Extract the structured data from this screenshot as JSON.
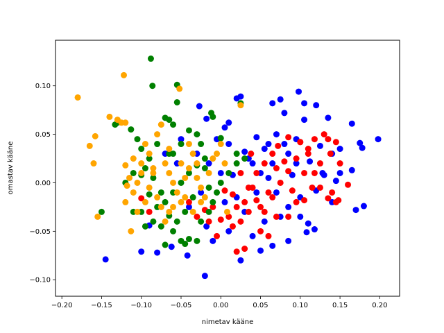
{
  "chart_data": {
    "type": "scatter",
    "xlabel": "nimetav kääne",
    "ylabel": "omastav kääne",
    "xlim": [
      -0.208,
      0.225
    ],
    "ylim": [
      -0.117,
      0.147
    ],
    "xticks": [
      -0.2,
      -0.15,
      -0.1,
      -0.05,
      0.0,
      0.05,
      0.1,
      0.15,
      0.2
    ],
    "xtick_labels": [
      "−0.20",
      "−0.15",
      "−0.10",
      "−0.05",
      "0.00",
      "0.05",
      "0.10",
      "0.15",
      "0.20"
    ],
    "yticks": [
      -0.1,
      -0.05,
      0.0,
      0.05,
      0.1
    ],
    "ytick_labels": [
      "−0.10",
      "−0.05",
      "0.00",
      "0.05",
      "0.10"
    ],
    "grid": false,
    "series": [
      {
        "color": "#0000ff",
        "points": [
          [
            -0.145,
            -0.079
          ],
          [
            -0.1,
            -0.071
          ],
          [
            -0.08,
            -0.072
          ],
          [
            -0.062,
            -0.066
          ],
          [
            -0.02,
            -0.096
          ],
          [
            -0.042,
            -0.075
          ],
          [
            -0.027,
            0.079
          ],
          [
            -0.018,
            0.066
          ],
          [
            0.005,
            0.057
          ],
          [
            0.02,
            0.087
          ],
          [
            0.025,
            0.089
          ],
          [
            0.065,
            0.082
          ],
          [
            0.075,
            0.086
          ],
          [
            0.098,
            0.094
          ],
          [
            0.105,
            0.082
          ],
          [
            0.12,
            0.08
          ],
          [
            0.135,
            0.067
          ],
          [
            0.165,
            0.061
          ],
          [
            0.175,
            0.041
          ],
          [
            0.178,
            0.036
          ],
          [
            0.198,
            0.045
          ],
          [
            0.165,
            0.013
          ],
          [
            0.18,
            -0.024
          ],
          [
            0.17,
            -0.028
          ],
          [
            0.118,
            -0.048
          ],
          [
            0.108,
            -0.051
          ],
          [
            0.085,
            -0.06
          ],
          [
            0.065,
            -0.065
          ],
          [
            0.05,
            -0.07
          ],
          [
            0.025,
            -0.08
          ],
          [
            0.01,
            -0.05
          ],
          [
            -0.01,
            -0.06
          ],
          [
            -0.018,
            -0.045
          ],
          [
            0.04,
            0.02
          ],
          [
            0.055,
            0.035
          ],
          [
            0.07,
            0.05
          ],
          [
            0.085,
            0.03
          ],
          [
            0.095,
            0.02
          ],
          [
            0.105,
            0.065
          ],
          [
            0.08,
            0.072
          ],
          [
            0.06,
            0.04
          ],
          [
            0.045,
            0.047
          ],
          [
            0.03,
            0.032
          ],
          [
            0.015,
            0.008
          ],
          [
            0.005,
            -0.02
          ],
          [
            -0.005,
            0.045
          ],
          [
            0.01,
            0.062
          ],
          [
            0.035,
            0.025
          ],
          [
            0.05,
            0.01
          ],
          [
            0.07,
            -0.01
          ],
          [
            0.085,
            -0.025
          ],
          [
            0.1,
            -0.035
          ],
          [
            0.11,
            -0.042
          ],
          [
            0.125,
            0.038
          ],
          [
            0.14,
            0.03
          ],
          [
            0.13,
            0.008
          ],
          [
            0.12,
            -0.008
          ],
          [
            0.14,
            -0.02
          ],
          [
            0.15,
            0.01
          ],
          [
            0.09,
            0.008
          ],
          [
            0.065,
            0.02
          ],
          [
            0.075,
            -0.035
          ],
          [
            0.055,
            -0.04
          ],
          [
            0.04,
            -0.055
          ],
          [
            0.03,
            -0.03
          ],
          [
            0.0,
            0.01
          ],
          [
            -0.015,
            0.02
          ],
          [
            -0.03,
            0.03
          ],
          [
            -0.05,
            0.045
          ],
          [
            -0.07,
            0.03
          ],
          [
            -0.055,
            0.02
          ],
          [
            -0.04,
            -0.025
          ],
          [
            -0.025,
            -0.01
          ],
          [
            0.02,
            -0.015
          ],
          [
            0.045,
            -0.01
          ],
          [
            0.08,
            0.04
          ],
          [
            0.095,
            0.045
          ],
          [
            0.112,
            0.022
          ],
          [
            0.128,
            0.01
          ],
          [
            0.145,
            0.002
          ],
          [
            0.15,
            0.035
          ],
          [
            -0.09,
            -0.044
          ],
          [
            0.01,
            0.04
          ],
          [
            0.06,
            0.005
          ],
          [
            0.1,
            -0.015
          ]
        ]
      },
      {
        "color": "#ff0000",
        "points": [
          [
            0.02,
            -0.071
          ],
          [
            0.03,
            -0.068
          ],
          [
            0.05,
            -0.05
          ],
          [
            0.06,
            -0.055
          ],
          [
            0.07,
            -0.035
          ],
          [
            0.085,
            -0.035
          ],
          [
            0.095,
            -0.02
          ],
          [
            0.105,
            -0.018
          ],
          [
            0.11,
            0.03
          ],
          [
            0.118,
            0.045
          ],
          [
            0.13,
            0.05
          ],
          [
            0.135,
            0.045
          ],
          [
            0.145,
            0.042
          ],
          [
            0.15,
            0.02
          ],
          [
            0.16,
            -0.002
          ],
          [
            0.14,
            -0.01
          ],
          [
            0.135,
            -0.016
          ],
          [
            0.145,
            -0.02
          ],
          [
            0.125,
            -0.005
          ],
          [
            0.118,
            0.01
          ],
          [
            0.1,
            0.042
          ],
          [
            0.085,
            0.047
          ],
          [
            0.072,
            0.038
          ],
          [
            0.065,
            0.03
          ],
          [
            0.055,
            0.02
          ],
          [
            0.045,
            0.01
          ],
          [
            0.04,
            -0.005
          ],
          [
            0.03,
            -0.02
          ],
          [
            0.02,
            -0.025
          ],
          [
            0.01,
            -0.035
          ],
          [
            0.0,
            -0.038
          ],
          [
            -0.01,
            -0.025
          ],
          [
            -0.015,
            -0.04
          ],
          [
            -0.005,
            -0.055
          ],
          [
            0.015,
            -0.045
          ],
          [
            0.025,
            -0.04
          ],
          [
            0.035,
            -0.03
          ],
          [
            0.05,
            -0.025
          ],
          [
            0.06,
            -0.01
          ],
          [
            0.075,
            0.0
          ],
          [
            0.085,
            0.012
          ],
          [
            0.095,
            0.025
          ],
          [
            0.105,
            0.01
          ],
          [
            0.115,
            -0.005
          ],
          [
            0.125,
            0.02
          ],
          [
            0.138,
            0.03
          ],
          [
            0.1,
            0.042
          ],
          [
            0.09,
            -0.008
          ],
          [
            0.08,
            0.022
          ],
          [
            0.065,
            -0.015
          ],
          [
            0.055,
            -0.03
          ],
          [
            0.045,
            -0.018
          ],
          [
            0.035,
            -0.005
          ],
          [
            0.025,
            0.01
          ],
          [
            0.015,
            -0.012
          ],
          [
            -0.04,
            -0.02
          ],
          [
            -0.03,
            -0.035
          ],
          [
            -0.02,
            -0.028
          ],
          [
            -0.1,
            -0.016
          ],
          [
            -0.09,
            -0.03
          ],
          [
            0.005,
            -0.008
          ],
          [
            0.038,
            0.03
          ],
          [
            0.07,
            0.015
          ],
          [
            0.11,
            0.035
          ],
          [
            0.148,
            -0.018
          ]
        ]
      },
      {
        "color": "#008000",
        "points": [
          [
            -0.088,
            0.128
          ],
          [
            -0.086,
            0.1
          ],
          [
            -0.055,
            0.101
          ],
          [
            -0.055,
            0.083
          ],
          [
            -0.133,
            0.06
          ],
          [
            -0.13,
            0.062
          ],
          [
            -0.113,
            0.055
          ],
          [
            -0.1,
            0.035
          ],
          [
            -0.09,
            0.025
          ],
          [
            -0.08,
            0.04
          ],
          [
            -0.07,
            0.067
          ],
          [
            -0.065,
            0.065
          ],
          [
            -0.06,
            0.06
          ],
          [
            -0.04,
            0.054
          ],
          [
            -0.03,
            0.05
          ],
          [
            -0.012,
            0.072
          ],
          [
            -0.01,
            0.068
          ],
          [
            0.0,
            0.046
          ],
          [
            0.02,
            0.03
          ],
          [
            0.025,
            0.082
          ],
          [
            -0.15,
            -0.03
          ],
          [
            -0.11,
            -0.03
          ],
          [
            -0.1,
            -0.03
          ],
          [
            -0.095,
            -0.045
          ],
          [
            -0.085,
            -0.04
          ],
          [
            -0.075,
            -0.045
          ],
          [
            -0.07,
            -0.064
          ],
          [
            -0.06,
            -0.05
          ],
          [
            -0.05,
            -0.06
          ],
          [
            -0.045,
            -0.063
          ],
          [
            -0.04,
            -0.058
          ],
          [
            -0.03,
            -0.06
          ],
          [
            -0.025,
            -0.04
          ],
          [
            -0.015,
            -0.03
          ],
          [
            -0.01,
            -0.02
          ],
          [
            -0.005,
            -0.01
          ],
          [
            0.0,
            0.0
          ],
          [
            0.01,
            0.01
          ],
          [
            0.02,
            0.02
          ],
          [
            0.03,
            0.025
          ],
          [
            -0.02,
            0.025
          ],
          [
            -0.03,
            0.018
          ],
          [
            -0.04,
            0.01
          ],
          [
            -0.05,
            0.0
          ],
          [
            -0.06,
            -0.01
          ],
          [
            -0.07,
            -0.02
          ],
          [
            -0.08,
            -0.025
          ],
          [
            -0.09,
            -0.012
          ],
          [
            -0.1,
            0.008
          ],
          [
            -0.11,
            0.01
          ],
          [
            -0.12,
            0.0
          ],
          [
            -0.06,
            0.03
          ],
          [
            -0.05,
            0.04
          ],
          [
            -0.025,
            0.04
          ],
          [
            -0.02,
            0.015
          ],
          [
            -0.035,
            -0.015
          ],
          [
            -0.045,
            -0.03
          ],
          [
            -0.055,
            -0.04
          ],
          [
            -0.065,
            -0.034
          ],
          [
            -0.075,
            -0.01
          ],
          [
            -0.085,
            0.005
          ],
          [
            -0.095,
            0.015
          ],
          [
            -0.105,
            0.045
          ],
          [
            -0.065,
            0.03
          ],
          [
            -0.015,
            -0.005
          ]
        ]
      },
      {
        "color": "#ffa500",
        "points": [
          [
            -0.18,
            0.088
          ],
          [
            -0.122,
            0.111
          ],
          [
            -0.052,
            0.097
          ],
          [
            -0.14,
            0.068
          ],
          [
            -0.13,
            0.065
          ],
          [
            -0.125,
            0.062
          ],
          [
            -0.12,
            0.062
          ],
          [
            -0.158,
            0.048
          ],
          [
            -0.165,
            0.038
          ],
          [
            -0.16,
            0.02
          ],
          [
            -0.155,
            -0.035
          ],
          [
            -0.12,
            0.018
          ],
          [
            -0.115,
            0.005
          ],
          [
            -0.11,
            -0.01
          ],
          [
            -0.12,
            -0.02
          ],
          [
            -0.113,
            -0.05
          ],
          [
            -0.105,
            -0.03
          ],
          [
            -0.1,
            0.02
          ],
          [
            -0.095,
            0.04
          ],
          [
            -0.09,
            0.03
          ],
          [
            -0.085,
            0.01
          ],
          [
            -0.08,
            0.05
          ],
          [
            -0.075,
            0.06
          ],
          [
            -0.07,
            0.02
          ],
          [
            -0.065,
            0.01
          ],
          [
            -0.06,
            0.0
          ],
          [
            -0.055,
            -0.01
          ],
          [
            -0.05,
            -0.02
          ],
          [
            -0.045,
            0.005
          ],
          [
            -0.04,
            0.015
          ],
          [
            -0.035,
            0.03
          ],
          [
            -0.03,
            0.02
          ],
          [
            -0.025,
            -0.005
          ],
          [
            -0.02,
            -0.015
          ],
          [
            -0.015,
            0.01
          ],
          [
            -0.01,
            0.025
          ],
          [
            -0.005,
            0.03
          ],
          [
            0.0,
            0.04
          ],
          [
            0.005,
            0.02
          ],
          [
            -0.075,
            -0.025
          ],
          [
            -0.07,
            -0.04
          ],
          [
            -0.065,
            -0.03
          ],
          [
            -0.08,
            -0.015
          ],
          [
            -0.09,
            -0.005
          ],
          [
            -0.1,
            0.01
          ],
          [
            -0.11,
            0.025
          ],
          [
            -0.05,
            0.02
          ],
          [
            -0.045,
            -0.015
          ],
          [
            -0.035,
            -0.03
          ],
          [
            -0.025,
            -0.02
          ],
          [
            -0.085,
            0.015
          ],
          [
            -0.095,
            -0.02
          ],
          [
            -0.105,
            0.0
          ],
          [
            -0.06,
            -0.025
          ],
          [
            -0.04,
            0.04
          ],
          [
            0.025,
            0.08
          ],
          [
            -0.118,
            -0.003
          ],
          [
            -0.065,
            0.035
          ],
          [
            -0.03,
            0.005
          ],
          [
            0.008,
            -0.03
          ]
        ]
      }
    ]
  }
}
